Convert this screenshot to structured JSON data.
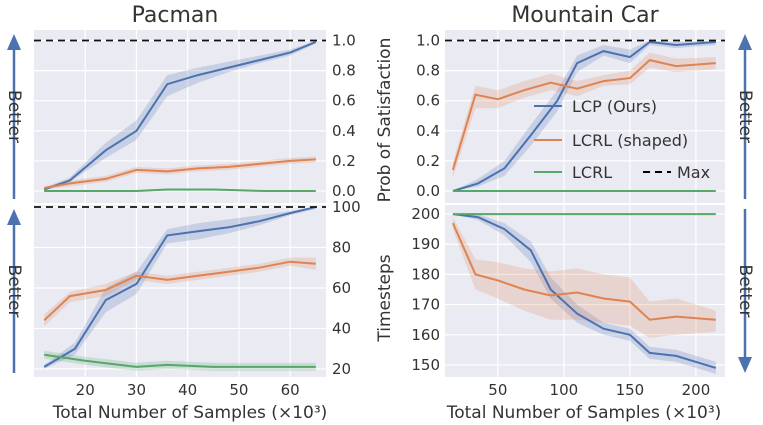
{
  "better_label": "Better",
  "chart_data": [
    {
      "type": "line",
      "title": "Pacman",
      "xlabel": "",
      "ylabel": "",
      "xlim": [
        10,
        67
      ],
      "ylim": [
        -0.08,
        1.07
      ],
      "x_ticks": [
        20,
        30,
        40,
        50,
        60
      ],
      "y_ticks": [
        "0.0",
        "0.2",
        "0.4",
        "0.6",
        "0.8",
        "1.0"
      ],
      "y_tick_values": [
        0,
        0.2,
        0.4,
        0.6,
        0.8,
        1.0
      ],
      "y_ticks_side": "right",
      "show_x_tick_labels": false,
      "max_line": 1.0,
      "better_direction": "up",
      "better_side": "left",
      "series": [
        {
          "name": "LCP (Ours)",
          "color": "#4c72b0",
          "x": [
            12,
            17,
            24,
            30,
            36,
            42,
            48,
            54,
            60,
            65
          ],
          "y": [
            0.01,
            0.07,
            0.27,
            0.4,
            0.71,
            0.77,
            0.82,
            0.87,
            0.92,
            0.99
          ],
          "lower": [
            0.01,
            0.06,
            0.22,
            0.34,
            0.63,
            0.72,
            0.79,
            0.85,
            0.9,
            0.98
          ],
          "upper": [
            0.02,
            0.09,
            0.32,
            0.47,
            0.77,
            0.82,
            0.86,
            0.9,
            0.94,
            1.0
          ]
        },
        {
          "name": "LCRL (shaped)",
          "color": "#dd8452",
          "x": [
            12,
            17,
            24,
            30,
            36,
            42,
            48,
            54,
            60,
            65
          ],
          "y": [
            0.02,
            0.05,
            0.08,
            0.14,
            0.13,
            0.15,
            0.16,
            0.18,
            0.2,
            0.21
          ],
          "lower": [
            0.01,
            0.03,
            0.06,
            0.12,
            0.11,
            0.13,
            0.14,
            0.16,
            0.18,
            0.19
          ],
          "upper": [
            0.03,
            0.07,
            0.1,
            0.16,
            0.15,
            0.17,
            0.18,
            0.2,
            0.22,
            0.23
          ]
        },
        {
          "name": "LCRL",
          "color": "#55a868",
          "x": [
            12,
            20,
            30,
            36,
            45,
            55,
            65
          ],
          "y": [
            0.0,
            0.0,
            0.0,
            0.01,
            0.01,
            0.0,
            0.0
          ],
          "lower": [
            0.0,
            0.0,
            0.0,
            0.0,
            0.0,
            0.0,
            0.0
          ],
          "upper": [
            0.005,
            0.005,
            0.005,
            0.015,
            0.015,
            0.005,
            0.005
          ]
        }
      ]
    },
    {
      "type": "line",
      "title": "Mountain Car",
      "xlabel": "",
      "ylabel": "Prob of Satisfaction",
      "xlim": [
        10,
        222
      ],
      "ylim": [
        -0.08,
        1.07
      ],
      "x_ticks": [
        50,
        100,
        150,
        200
      ],
      "y_ticks": [
        "0.0",
        "0.2",
        "0.4",
        "0.6",
        "0.8",
        "1.0"
      ],
      "y_tick_values": [
        0,
        0.2,
        0.4,
        0.6,
        0.8,
        1.0
      ],
      "y_ticks_side": "left",
      "show_x_tick_labels": false,
      "max_line": 1.0,
      "better_direction": "up",
      "better_side": "right",
      "series": [
        {
          "name": "LCP (Ours)",
          "color": "#4c72b0",
          "x": [
            16,
            35,
            55,
            75,
            95,
            110,
            130,
            150,
            165,
            185,
            215
          ],
          "y": [
            0.0,
            0.05,
            0.15,
            0.37,
            0.6,
            0.85,
            0.93,
            0.89,
            0.99,
            0.97,
            0.99
          ],
          "lower": [
            0.0,
            0.03,
            0.1,
            0.3,
            0.53,
            0.79,
            0.9,
            0.85,
            0.97,
            0.95,
            0.97
          ],
          "upper": [
            0.0,
            0.08,
            0.2,
            0.44,
            0.67,
            0.9,
            0.97,
            0.94,
            1.0,
            0.99,
            1.0
          ]
        },
        {
          "name": "LCRL (shaped)",
          "color": "#dd8452",
          "x": [
            16,
            33,
            50,
            70,
            90,
            110,
            130,
            150,
            165,
            185,
            215
          ],
          "y": [
            0.14,
            0.64,
            0.61,
            0.67,
            0.72,
            0.68,
            0.73,
            0.75,
            0.87,
            0.83,
            0.85
          ],
          "lower": [
            0.09,
            0.55,
            0.55,
            0.62,
            0.67,
            0.63,
            0.7,
            0.71,
            0.82,
            0.79,
            0.81
          ],
          "upper": [
            0.19,
            0.7,
            0.67,
            0.73,
            0.78,
            0.73,
            0.77,
            0.8,
            0.92,
            0.88,
            0.89
          ]
        },
        {
          "name": "LCRL",
          "color": "#55a868",
          "x": [
            16,
            215
          ],
          "y": [
            0.0,
            0.0
          ],
          "lower": [
            0.0,
            0.0
          ],
          "upper": [
            0.0,
            0.0
          ]
        }
      ],
      "legend": {
        "placement": "center-right",
        "entries": [
          {
            "label": "LCP (Ours)",
            "color": "#4c72b0",
            "style": "solid"
          },
          {
            "label": "LCRL (shaped)",
            "color": "#dd8452",
            "style": "solid"
          },
          {
            "label": "LCRL",
            "color": "#55a868",
            "style": "solid"
          },
          {
            "label": "Max",
            "color": "#000000",
            "style": "dashed"
          }
        ]
      }
    },
    {
      "type": "line",
      "title": "",
      "xlabel": "Total Number of Samples (×10³)",
      "ylabel": "",
      "xlim": [
        10,
        67
      ],
      "ylim": [
        16,
        101
      ],
      "x_ticks": [
        20,
        30,
        40,
        50,
        60
      ],
      "y_ticks": [
        "20",
        "40",
        "60",
        "80",
        "100"
      ],
      "y_tick_values": [
        20,
        40,
        60,
        80,
        100
      ],
      "y_ticks_side": "right",
      "show_x_tick_labels": true,
      "max_line": 100,
      "better_direction": "up",
      "better_side": "left",
      "series": [
        {
          "name": "LCP (Ours)",
          "color": "#4c72b0",
          "x": [
            12,
            18,
            24,
            30,
            36,
            42,
            48,
            54,
            60,
            65
          ],
          "y": [
            21,
            30,
            54,
            62,
            86,
            88,
            90,
            93,
            97,
            100
          ],
          "lower": [
            20,
            27,
            48,
            57,
            82,
            84,
            87,
            91,
            96,
            99
          ],
          "upper": [
            22,
            33,
            60,
            68,
            89,
            92,
            94,
            96,
            98,
            100
          ]
        },
        {
          "name": "LCRL (shaped)",
          "color": "#dd8452",
          "x": [
            12,
            17,
            24,
            30,
            36,
            42,
            48,
            54,
            60,
            65
          ],
          "y": [
            44,
            56,
            59,
            66,
            64,
            66,
            68,
            70,
            73,
            72
          ],
          "lower": [
            41,
            53,
            56,
            64,
            62,
            64,
            66,
            68,
            71,
            69
          ],
          "upper": [
            47,
            58,
            62,
            68,
            66,
            68,
            70,
            72,
            75,
            75
          ]
        },
        {
          "name": "LCRL",
          "color": "#55a868",
          "x": [
            12,
            20,
            30,
            36,
            45,
            55,
            65
          ],
          "y": [
            27,
            24,
            21,
            22,
            21,
            21,
            21
          ],
          "lower": [
            25,
            22,
            19,
            20,
            19,
            19,
            19
          ],
          "upper": [
            29,
            26,
            23,
            24,
            23,
            23,
            23
          ]
        }
      ]
    },
    {
      "type": "line",
      "title": "",
      "xlabel": "Total Number of Samples (×10³)",
      "ylabel": "Timesteps",
      "xlim": [
        10,
        222
      ],
      "ylim": [
        146,
        203
      ],
      "x_ticks": [
        50,
        100,
        150,
        200
      ],
      "y_ticks": [
        "150",
        "160",
        "170",
        "180",
        "190",
        "200"
      ],
      "y_tick_values": [
        150,
        160,
        170,
        180,
        190,
        200
      ],
      "y_ticks_side": "left",
      "show_x_tick_labels": true,
      "max_line": null,
      "better_direction": "down",
      "better_side": "right",
      "series": [
        {
          "name": "LCP (Ours)",
          "color": "#4c72b0",
          "x": [
            16,
            35,
            55,
            75,
            90,
            110,
            130,
            150,
            165,
            185,
            215
          ],
          "y": [
            200,
            199,
            195,
            188,
            175,
            167,
            162,
            160,
            154,
            153,
            149
          ],
          "lower": [
            200,
            198,
            193,
            184,
            172,
            164,
            160,
            158,
            152,
            151,
            147
          ],
          "upper": [
            200,
            200,
            197,
            191,
            179,
            170,
            164,
            162,
            156,
            155,
            151
          ]
        },
        {
          "name": "LCRL (shaped)",
          "color": "#dd8452",
          "x": [
            16,
            33,
            50,
            70,
            90,
            110,
            130,
            150,
            165,
            185,
            215
          ],
          "y": [
            197,
            180,
            178,
            175,
            173,
            174,
            172,
            171,
            165,
            166,
            165
          ],
          "lower": [
            195,
            175,
            172,
            168,
            165,
            165,
            164,
            163,
            159,
            160,
            161
          ],
          "upper": [
            199,
            185,
            184,
            182,
            181,
            182,
            180,
            179,
            171,
            172,
            168
          ]
        },
        {
          "name": "LCRL",
          "color": "#55a868",
          "x": [
            16,
            215
          ],
          "y": [
            200,
            200
          ],
          "lower": [
            200,
            200
          ],
          "upper": [
            200,
            200
          ]
        }
      ]
    }
  ]
}
